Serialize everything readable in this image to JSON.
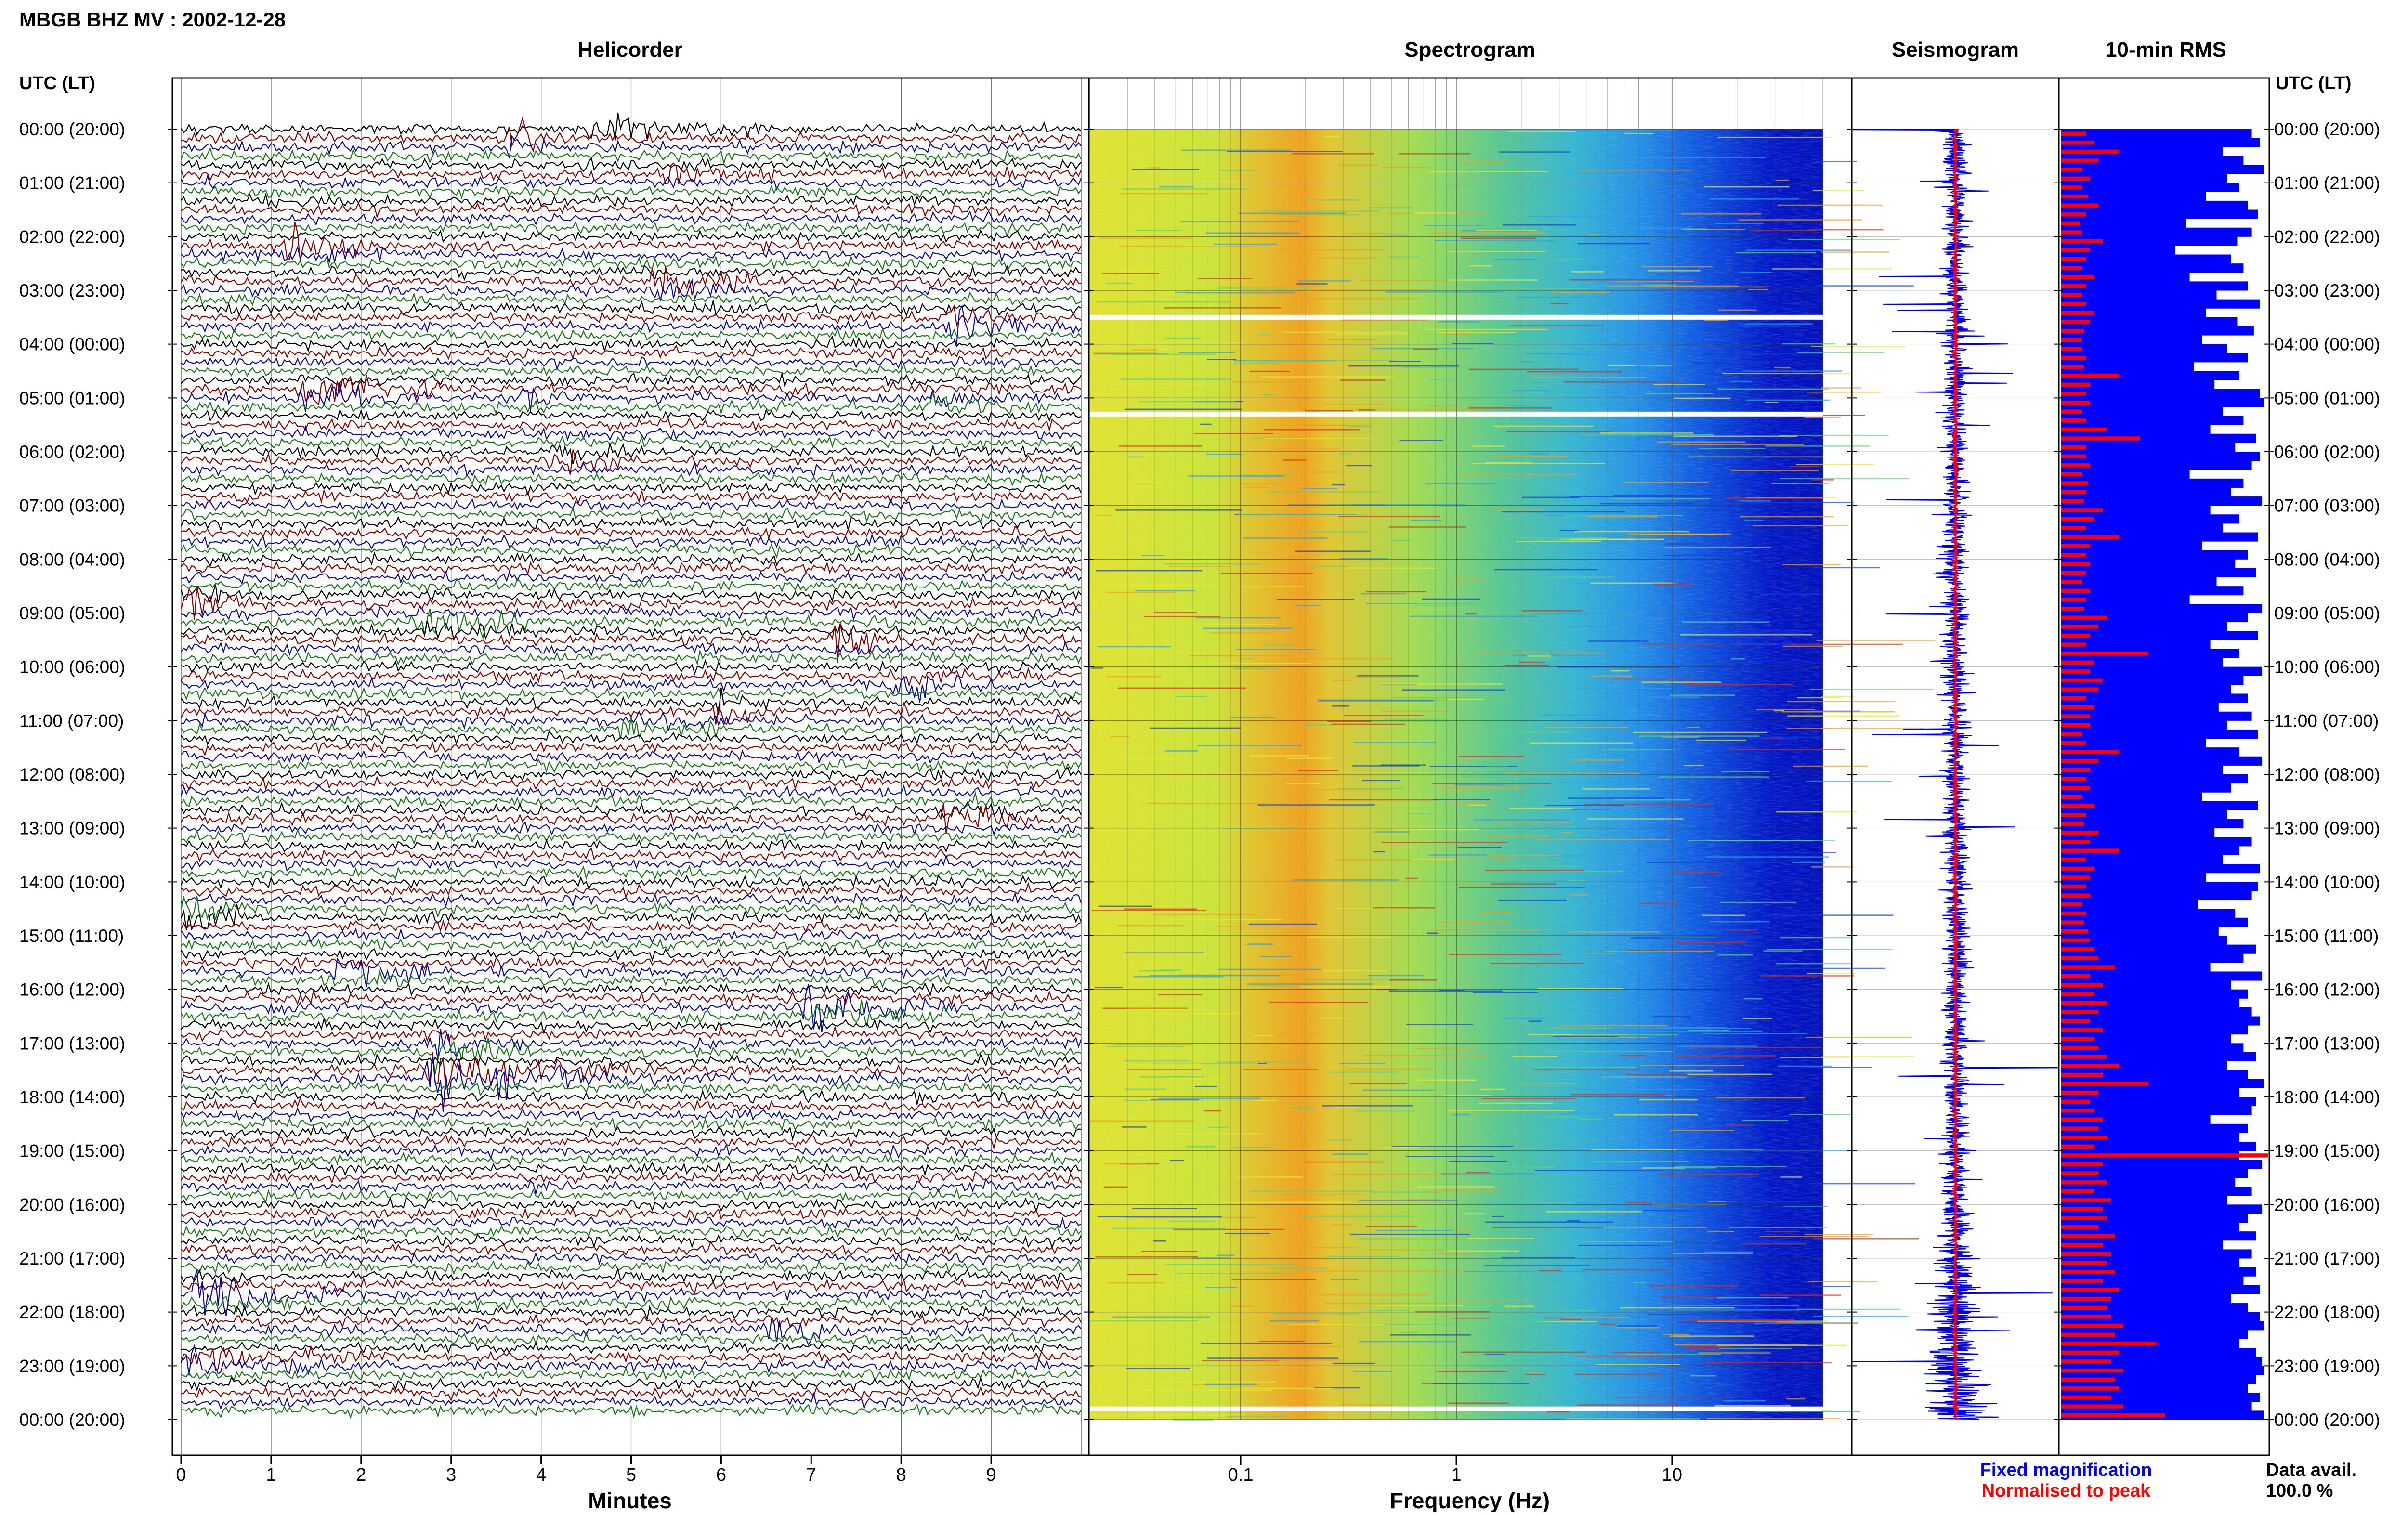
{
  "header": {
    "station_title": "MBGB BHZ MV : 2002-12-28",
    "utc_label_left": "UTC (LT)",
    "utc_label_right": "UTC (LT)"
  },
  "panels": {
    "helicorder": "Helicorder",
    "spectrogram": "Spectrogram",
    "seismogram": "Seismogram",
    "rms": "10-min RMS"
  },
  "time_labels": [
    "00:00 (20:00)",
    "01:00 (21:00)",
    "02:00 (22:00)",
    "03:00 (23:00)",
    "04:00 (00:00)",
    "05:00 (01:00)",
    "06:00 (02:00)",
    "07:00 (03:00)",
    "08:00 (04:00)",
    "09:00 (05:00)",
    "10:00 (06:00)",
    "11:00 (07:00)",
    "12:00 (08:00)",
    "13:00 (09:00)",
    "14:00 (10:00)",
    "15:00 (11:00)",
    "16:00 (12:00)",
    "17:00 (13:00)",
    "18:00 (14:00)",
    "19:00 (15:00)",
    "20:00 (16:00)",
    "21:00 (17:00)",
    "22:00 (18:00)",
    "23:00 (19:00)",
    "00:00 (20:00)"
  ],
  "footer": {
    "fixed_magnification": "Fixed magnification",
    "normalised_to_peak": "Normalised to peak",
    "data_avail_label": "Data avail.",
    "data_avail_value": "100.0 %"
  },
  "colors": {
    "black": "#000000",
    "trace_red": "#8b0000",
    "trace_blue": "#0a0a9a",
    "trace_green": "#157a15",
    "seis_blue": "#0000ee",
    "rms_blue": "#0000ff",
    "rms_red": "#ff0000",
    "spec_floor": "#0010c8"
  },
  "chart_data": [
    {
      "type": "line",
      "panel": "helicorder",
      "xlabel": "Minutes",
      "x_ticks": [
        0,
        1,
        2,
        3,
        4,
        5,
        6,
        7,
        8,
        9
      ],
      "xlim": [
        0,
        10
      ],
      "rows_per_hour": 6,
      "hours": 24,
      "trace_color_cycle": [
        "black",
        "trace_red",
        "trace_blue",
        "trace_green"
      ],
      "events": [
        {
          "hour": 0.0,
          "minute": 4.6,
          "dur": 1.4,
          "amp": 1.0
        },
        {
          "hour": 0.2,
          "minute": 3.7,
          "dur": 0.8,
          "amp": 1.4
        },
        {
          "hour": 0.8,
          "minute": 5.4,
          "dur": 1.0,
          "amp": 0.6
        },
        {
          "hour": 2.2,
          "minute": 1.2,
          "dur": 1.5,
          "amp": 0.9
        },
        {
          "hour": 2.9,
          "minute": 5.3,
          "dur": 1.5,
          "amp": 1.0
        },
        {
          "hour": 3.6,
          "minute": 8.6,
          "dur": 1.2,
          "amp": 1.2
        },
        {
          "hour": 4.9,
          "minute": 1.4,
          "dur": 1.6,
          "amp": 1.3
        },
        {
          "hour": 5.0,
          "minute": 3.9,
          "dur": 0.4,
          "amp": 1.0
        },
        {
          "hour": 5.1,
          "minute": 8.4,
          "dur": 1.2,
          "amp": 0.9
        },
        {
          "hour": 6.1,
          "minute": 4.1,
          "dur": 1.0,
          "amp": 1.1
        },
        {
          "hour": 8.8,
          "minute": 0.1,
          "dur": 0.7,
          "amp": 1.3
        },
        {
          "hour": 9.2,
          "minute": 2.7,
          "dur": 1.4,
          "amp": 1.0
        },
        {
          "hour": 9.5,
          "minute": 7.3,
          "dur": 0.8,
          "amp": 1.1
        },
        {
          "hour": 10.3,
          "minute": 8.0,
          "dur": 1.3,
          "amp": 1.0
        },
        {
          "hour": 10.8,
          "minute": 6.0,
          "dur": 0.3,
          "amp": 1.5
        },
        {
          "hour": 11.1,
          "minute": 5.0,
          "dur": 1.0,
          "amp": 0.8
        },
        {
          "hour": 12.8,
          "minute": 8.5,
          "dur": 1.0,
          "amp": 1.2
        },
        {
          "hour": 14.6,
          "minute": 0.1,
          "dur": 1.0,
          "amp": 1.0
        },
        {
          "hour": 15.7,
          "minute": 1.7,
          "dur": 1.3,
          "amp": 1.1
        },
        {
          "hour": 16.4,
          "minute": 7.0,
          "dur": 1.8,
          "amp": 1.3
        },
        {
          "hour": 17.1,
          "minute": 2.8,
          "dur": 1.2,
          "amp": 1.4
        },
        {
          "hour": 17.6,
          "minute": 2.8,
          "dur": 2.5,
          "amp": 1.9
        },
        {
          "hour": 21.7,
          "minute": 0.2,
          "dur": 1.6,
          "amp": 1.3
        },
        {
          "hour": 22.3,
          "minute": 6.6,
          "dur": 1.0,
          "amp": 1.0
        },
        {
          "hour": 22.9,
          "minute": 0.0,
          "dur": 2.0,
          "amp": 1.1
        }
      ]
    },
    {
      "type": "heatmap",
      "panel": "spectrogram",
      "xlabel": "Frequency (Hz)",
      "x_scale": "log",
      "xlim": [
        0.02,
        50
      ],
      "x_tick_labels": [
        0.1,
        1,
        10
      ],
      "peak_band_hz": [
        0.2,
        0.3
      ],
      "noise_rolloff_hz": [
        2,
        20
      ],
      "gaps_hours": [
        3.5,
        5.3,
        23.8
      ]
    },
    {
      "type": "line",
      "panel": "seismogram",
      "series": [
        {
          "name": "Fixed magnification",
          "color": "seis_blue"
        },
        {
          "name": "Normalised to peak",
          "color": "rms_red"
        }
      ]
    },
    {
      "type": "bar",
      "panel": "rms",
      "orientation": "horizontal",
      "bins_per_hour": 6,
      "blue_fixed_magnification": [
        0.92,
        0.96,
        0.78,
        0.88,
        0.98,
        0.8,
        0.86,
        0.7,
        0.9,
        0.95,
        0.6,
        0.92,
        0.85,
        0.55,
        0.82,
        0.88,
        0.62,
        0.9,
        0.75,
        0.96,
        0.7,
        0.85,
        0.93,
        0.68,
        0.8,
        0.9,
        0.64,
        0.86,
        0.74,
        0.96,
        0.98,
        0.78,
        0.88,
        0.72,
        0.94,
        0.84,
        0.96,
        0.92,
        0.62,
        0.88,
        0.82,
        0.97,
        0.72,
        0.86,
        0.78,
        0.95,
        0.68,
        0.9,
        0.84,
        0.94,
        0.75,
        0.88,
        0.62,
        0.97,
        0.9,
        0.8,
        0.95,
        0.72,
        0.86,
        0.78,
        0.97,
        0.88,
        0.82,
        0.9,
        0.76,
        0.92,
        0.8,
        0.95,
        0.7,
        0.86,
        0.97,
        0.78,
        0.9,
        0.82,
        0.68,
        0.95,
        0.8,
        0.88,
        0.74,
        0.92,
        0.86,
        0.78,
        0.96,
        0.7,
        0.95,
        0.92,
        0.66,
        0.84,
        0.9,
        0.76,
        0.8,
        0.94,
        0.88,
        0.72,
        0.97,
        0.82,
        0.9,
        0.86,
        0.92,
        0.96,
        0.9,
        0.82,
        0.88,
        0.94,
        0.8,
        0.9,
        0.98,
        0.86,
        0.94,
        0.92,
        0.72,
        0.9,
        0.86,
        0.94,
        0.86,
        0.97,
        0.9,
        0.84,
        0.92,
        0.8,
        0.97,
        0.9,
        0.86,
        0.94,
        0.78,
        0.92,
        0.86,
        0.94,
        0.88,
        0.96,
        0.82,
        0.9,
        0.96,
        0.98,
        0.9,
        0.86,
        0.94,
        0.97,
        0.98,
        0.94,
        0.9,
        0.96,
        0.92,
        0.98
      ],
      "red_normalised_to_peak": [
        0.12,
        0.16,
        0.28,
        0.18,
        0.1,
        0.14,
        0.1,
        0.13,
        0.18,
        0.12,
        0.09,
        0.1,
        0.2,
        0.14,
        0.12,
        0.1,
        0.16,
        0.12,
        0.1,
        0.12,
        0.16,
        0.14,
        0.11,
        0.1,
        0.1,
        0.12,
        0.11,
        0.28,
        0.14,
        0.12,
        0.14,
        0.1,
        0.12,
        0.22,
        0.38,
        0.12,
        0.12,
        0.14,
        0.1,
        0.13,
        0.12,
        0.11,
        0.2,
        0.16,
        0.12,
        0.28,
        0.14,
        0.12,
        0.14,
        0.12,
        0.1,
        0.14,
        0.12,
        0.11,
        0.22,
        0.18,
        0.14,
        0.12,
        0.42,
        0.16,
        0.14,
        0.2,
        0.18,
        0.12,
        0.16,
        0.14,
        0.14,
        0.1,
        0.12,
        0.28,
        0.18,
        0.14,
        0.12,
        0.14,
        0.1,
        0.16,
        0.12,
        0.11,
        0.18,
        0.14,
        0.28,
        0.12,
        0.16,
        0.14,
        0.12,
        0.14,
        0.1,
        0.12,
        0.11,
        0.13,
        0.14,
        0.16,
        0.18,
        0.26,
        0.14,
        0.2,
        0.16,
        0.22,
        0.18,
        0.14,
        0.2,
        0.16,
        0.18,
        0.22,
        0.28,
        0.2,
        0.42,
        0.18,
        0.14,
        0.16,
        0.2,
        0.18,
        0.22,
        0.16,
        1.0,
        0.2,
        0.18,
        0.22,
        0.16,
        0.24,
        0.2,
        0.22,
        0.18,
        0.26,
        0.2,
        0.24,
        0.22,
        0.26,
        0.2,
        0.28,
        0.24,
        0.22,
        0.24,
        0.3,
        0.26,
        0.46,
        0.28,
        0.24,
        0.3,
        0.26,
        0.28,
        0.24,
        0.3,
        0.5
      ]
    }
  ]
}
